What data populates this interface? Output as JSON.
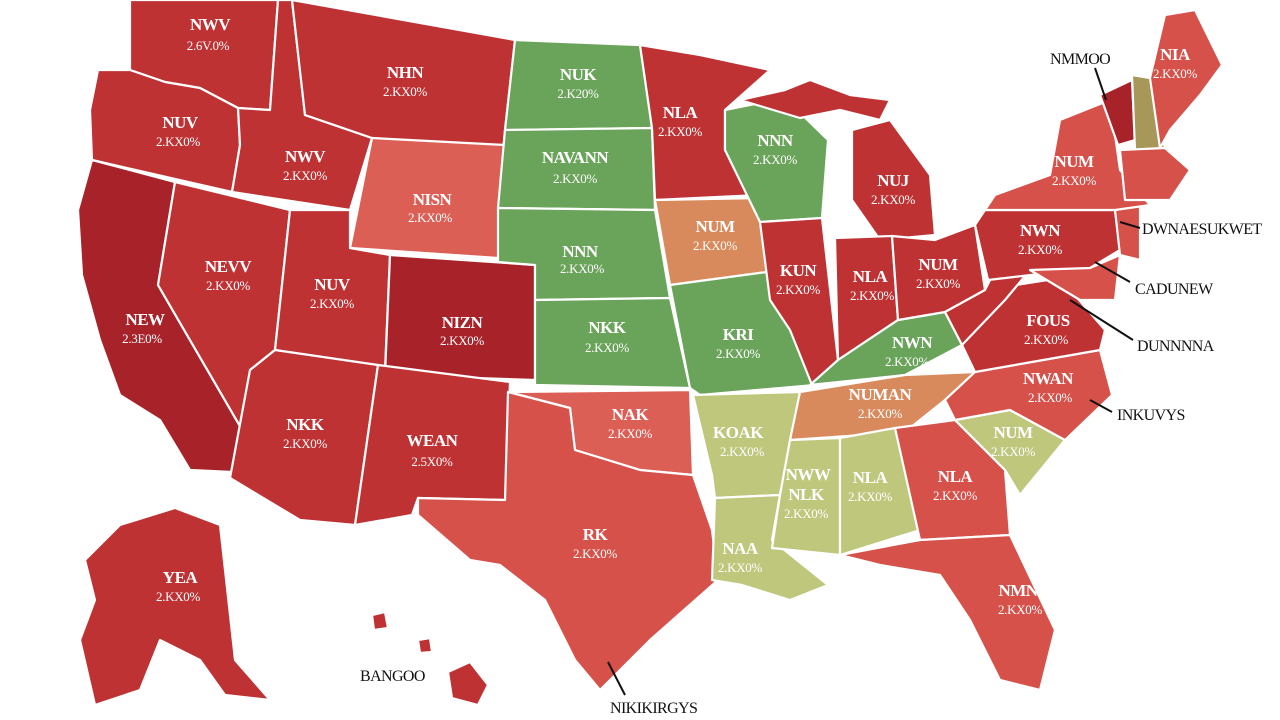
{
  "colors": {
    "dark_red": "#a8222a",
    "red": "#bf3234",
    "light_red": "#d6514a",
    "salmon": "#dc5f55",
    "orange": "#d98a5c",
    "green": "#6aa35a",
    "light_green": "#bfc77d",
    "olive": "#a7985a"
  },
  "states": {
    "wa": {
      "name": "NWV",
      "value": "2.6V.0%"
    },
    "or": {
      "name": "NUV",
      "value": "2.KX0%"
    },
    "ca": {
      "name": "NEW",
      "value": "2.3E0%"
    },
    "id": {
      "name": "NWV",
      "value": "2.KX0%"
    },
    "nv": {
      "name": "NEVV",
      "value": "2.KX0%"
    },
    "mt": {
      "name": "NHN",
      "value": "2.KX0%"
    },
    "wy": {
      "name": "NISN",
      "value": "2.KX0%"
    },
    "ut": {
      "name": "NUV",
      "value": "2.KX0%"
    },
    "co": {
      "name": "NIZN",
      "value": "2.KX0%"
    },
    "az": {
      "name": "NKK",
      "value": "2.KX0%"
    },
    "nm": {
      "name": "WEAN",
      "value": "2.5X0%"
    },
    "nd": {
      "name": "NUK",
      "value": "2.K20%"
    },
    "sd": {
      "name": "NAVANN",
      "value": "2.KX0%"
    },
    "ne": {
      "name": "NNN",
      "value": "2.KX0%"
    },
    "ks": {
      "name": "NKK",
      "value": "2.KX0%"
    },
    "ok": {
      "name": "NAK",
      "value": "2.KX0%"
    },
    "tx": {
      "name": "RK",
      "value": "2.KX0%"
    },
    "mn": {
      "name": "NLA",
      "value": "2.KX0%"
    },
    "ia": {
      "name": "NUM",
      "value": "2.KX0%"
    },
    "mo": {
      "name": "KRI",
      "value": "2.KX0%"
    },
    "ar": {
      "name": "KOAK",
      "value": "2.KX0%"
    },
    "la": {
      "name": "NAA",
      "value": "2.KX0%"
    },
    "wi": {
      "name": "NNN",
      "value": "2.KX0%"
    },
    "il": {
      "name": "KUN",
      "value": "2.KX0%"
    },
    "ms": {
      "name": "NWW",
      "value": "2.KX0%"
    },
    "ms_sub": {
      "name": "NLK",
      "value": ""
    },
    "mi": {
      "name": "NUJ",
      "value": "2.KX0%"
    },
    "in": {
      "name": "NLA",
      "value": "2.KX0%"
    },
    "ky": {
      "name": "NWN",
      "value": "2.KX0%"
    },
    "tn": {
      "name": "NUMAN",
      "value": "2.KX0%"
    },
    "al": {
      "name": "NLA",
      "value": "2.KX0%"
    },
    "oh": {
      "name": "NUM",
      "value": "2.KX0%"
    },
    "ga": {
      "name": "NLA",
      "value": "2.KX0%"
    },
    "fl": {
      "name": "NMN",
      "value": "2.KX0%"
    },
    "sc": {
      "name": "NUM",
      "value": "2.KX0%"
    },
    "nc": {
      "name": "NWAN",
      "value": "2.KX0%"
    },
    "va": {
      "name": "FOUS",
      "value": "2.KX0%"
    },
    "pa": {
      "name": "NWN",
      "value": "2.KX0%"
    },
    "ny": {
      "name": "NUM",
      "value": "2.KX0%"
    },
    "me": {
      "name": "NIA",
      "value": "2.KX0%"
    },
    "ak": {
      "name": "YEA",
      "value": "2.KX0%"
    }
  },
  "callouts": {
    "maine": "NMMOO",
    "nj": "DWNAESUKWET",
    "md": "CADUNEW",
    "va": "DUNNNNA",
    "nc": "INKUVYS",
    "hawaii": "BANGOO",
    "texas": "NIKIKIRGYS"
  }
}
